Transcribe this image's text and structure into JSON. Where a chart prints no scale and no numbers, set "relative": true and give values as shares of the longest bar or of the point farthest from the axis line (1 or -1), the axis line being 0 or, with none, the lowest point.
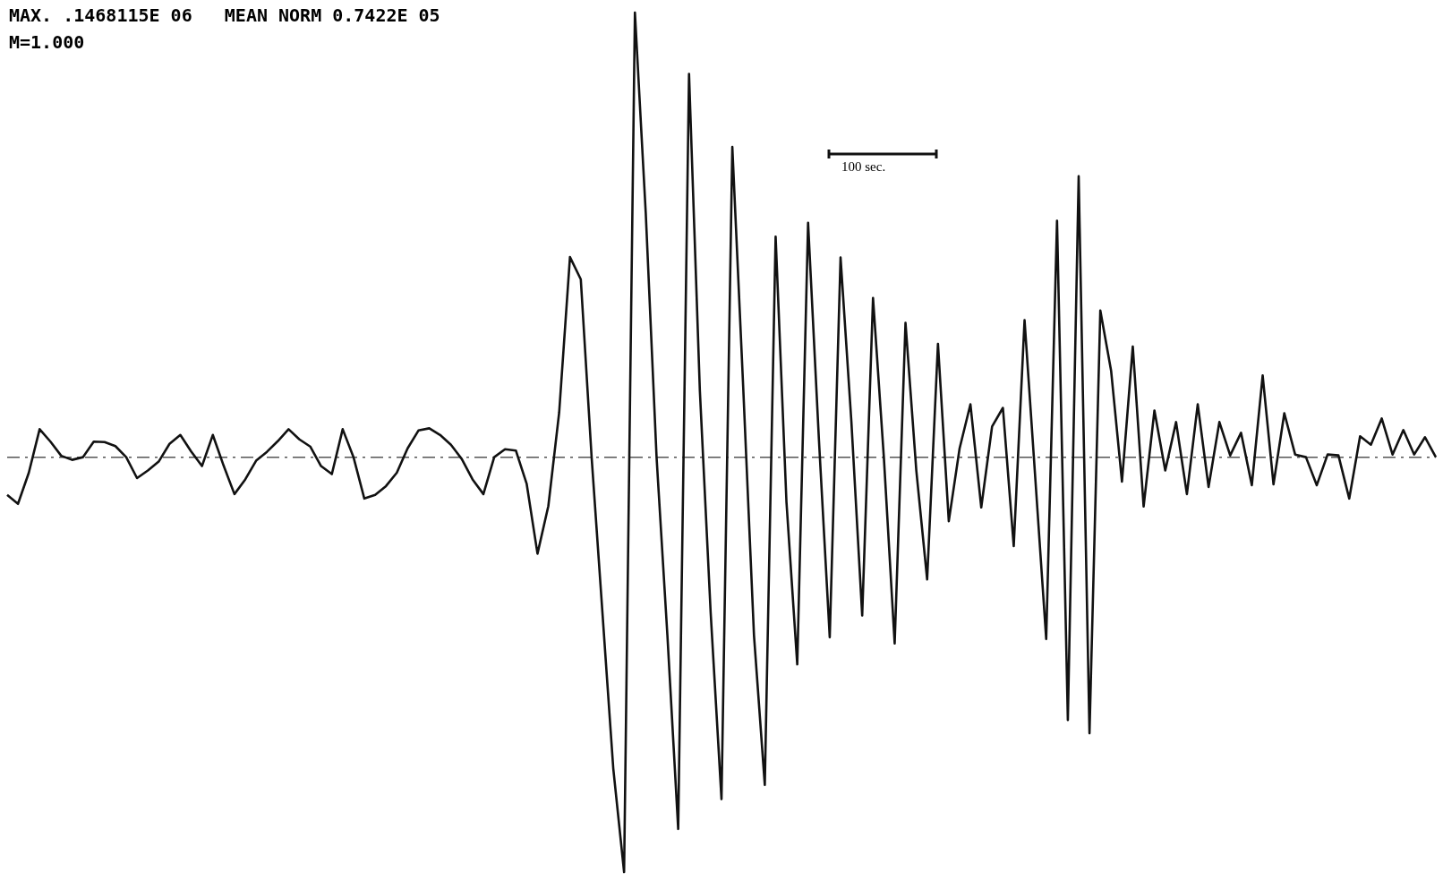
{
  "chart_data": {
    "type": "line",
    "relative": true,
    "tick_labels": false,
    "ref_lines": [
      {
        "axis": "y",
        "value": 0,
        "line_style": "dashed",
        "color": "#555555"
      }
    ],
    "annotations": [
      "MAX. .1468115E 06   MEAN NORM 0.7422E 05",
      "M=1.000",
      "100 sec."
    ],
    "categories": [
      null,
      null,
      null,
      null,
      null,
      null,
      null,
      null,
      null,
      null,
      null,
      null,
      null,
      null,
      null,
      null,
      null,
      null,
      null,
      null,
      null,
      null,
      null,
      null,
      null,
      null,
      null,
      null,
      null,
      null,
      null,
      null,
      null,
      null,
      null,
      null,
      null,
      null,
      null,
      null,
      null,
      null,
      null,
      null,
      null,
      null,
      null,
      null,
      null,
      null,
      null,
      null,
      null,
      null,
      null,
      null,
      null,
      null,
      null,
      null,
      null,
      null,
      null,
      null,
      null,
      null,
      null,
      null,
      null,
      null,
      null,
      null,
      null,
      null,
      null,
      null,
      null,
      null,
      null,
      null,
      null,
      null,
      null,
      null,
      null,
      null,
      null,
      null,
      null,
      null,
      null,
      null,
      null,
      null,
      null,
      null,
      null,
      null,
      null,
      null,
      null,
      null,
      null,
      null,
      null,
      null,
      null,
      null,
      null,
      null,
      null,
      null,
      null,
      null,
      null,
      null,
      null,
      null,
      null,
      null,
      null,
      null,
      null,
      null,
      null,
      null,
      null,
      null,
      null,
      null,
      null,
      null,
      null
    ],
    "series": [
      {
        "color": "#111111",
        "values": [
          -0.085,
          -0.105,
          -0.035,
          0.063,
          0.035,
          0.003,
          -0.006,
          0,
          0.035,
          0.034,
          0.025,
          0,
          -0.047,
          -0.03,
          -0.01,
          0.03,
          0.05,
          0.013,
          -0.02,
          0.05,
          -0.019,
          -0.083,
          -0.05,
          -0.008,
          0.012,
          0.036,
          0.063,
          0.04,
          0.024,
          -0.02,
          -0.038,
          0.063,
          0,
          -0.093,
          -0.085,
          -0.065,
          -0.035,
          0.02,
          0.06,
          0.065,
          0.05,
          0.028,
          -0.004,
          -0.05,
          -0.083,
          0,
          0.018,
          0.015,
          -0.06,
          -0.217,
          -0.11,
          0.1,
          0.45,
          0.4,
          0,
          -0.35,
          -0.7,
          -0.933,
          1,
          0.55,
          0,
          -0.4,
          -0.836,
          0.862,
          0.15,
          -0.35,
          -0.769,
          0.698,
          0.16,
          -0.4,
          -0.737,
          0.496,
          -0.1,
          -0.466,
          0.527,
          0.04,
          -0.405,
          0.449,
          0.08,
          -0.356,
          0.358,
          0,
          -0.419,
          0.302,
          -0.03,
          -0.275,
          0.255,
          -0.144,
          0.02,
          0.119,
          -0.113,
          0.069,
          0.111,
          -0.2,
          0.308,
          -0.05,
          -0.409,
          0.532,
          -0.591,
          0.632,
          -0.621,
          0.33,
          0.194,
          -0.055,
          0.249,
          -0.111,
          0.105,
          -0.03,
          0.079,
          -0.083,
          0.119,
          -0.067,
          0.079,
          0.004,
          0.055,
          -0.063,
          0.184,
          -0.061,
          0.099,
          0.006,
          0,
          -0.063,
          0.006,
          0.004,
          -0.093,
          0.047,
          0.028,
          0.087,
          0.006,
          0.061,
          0.006,
          0.045,
          0
        ]
      }
    ]
  }
}
